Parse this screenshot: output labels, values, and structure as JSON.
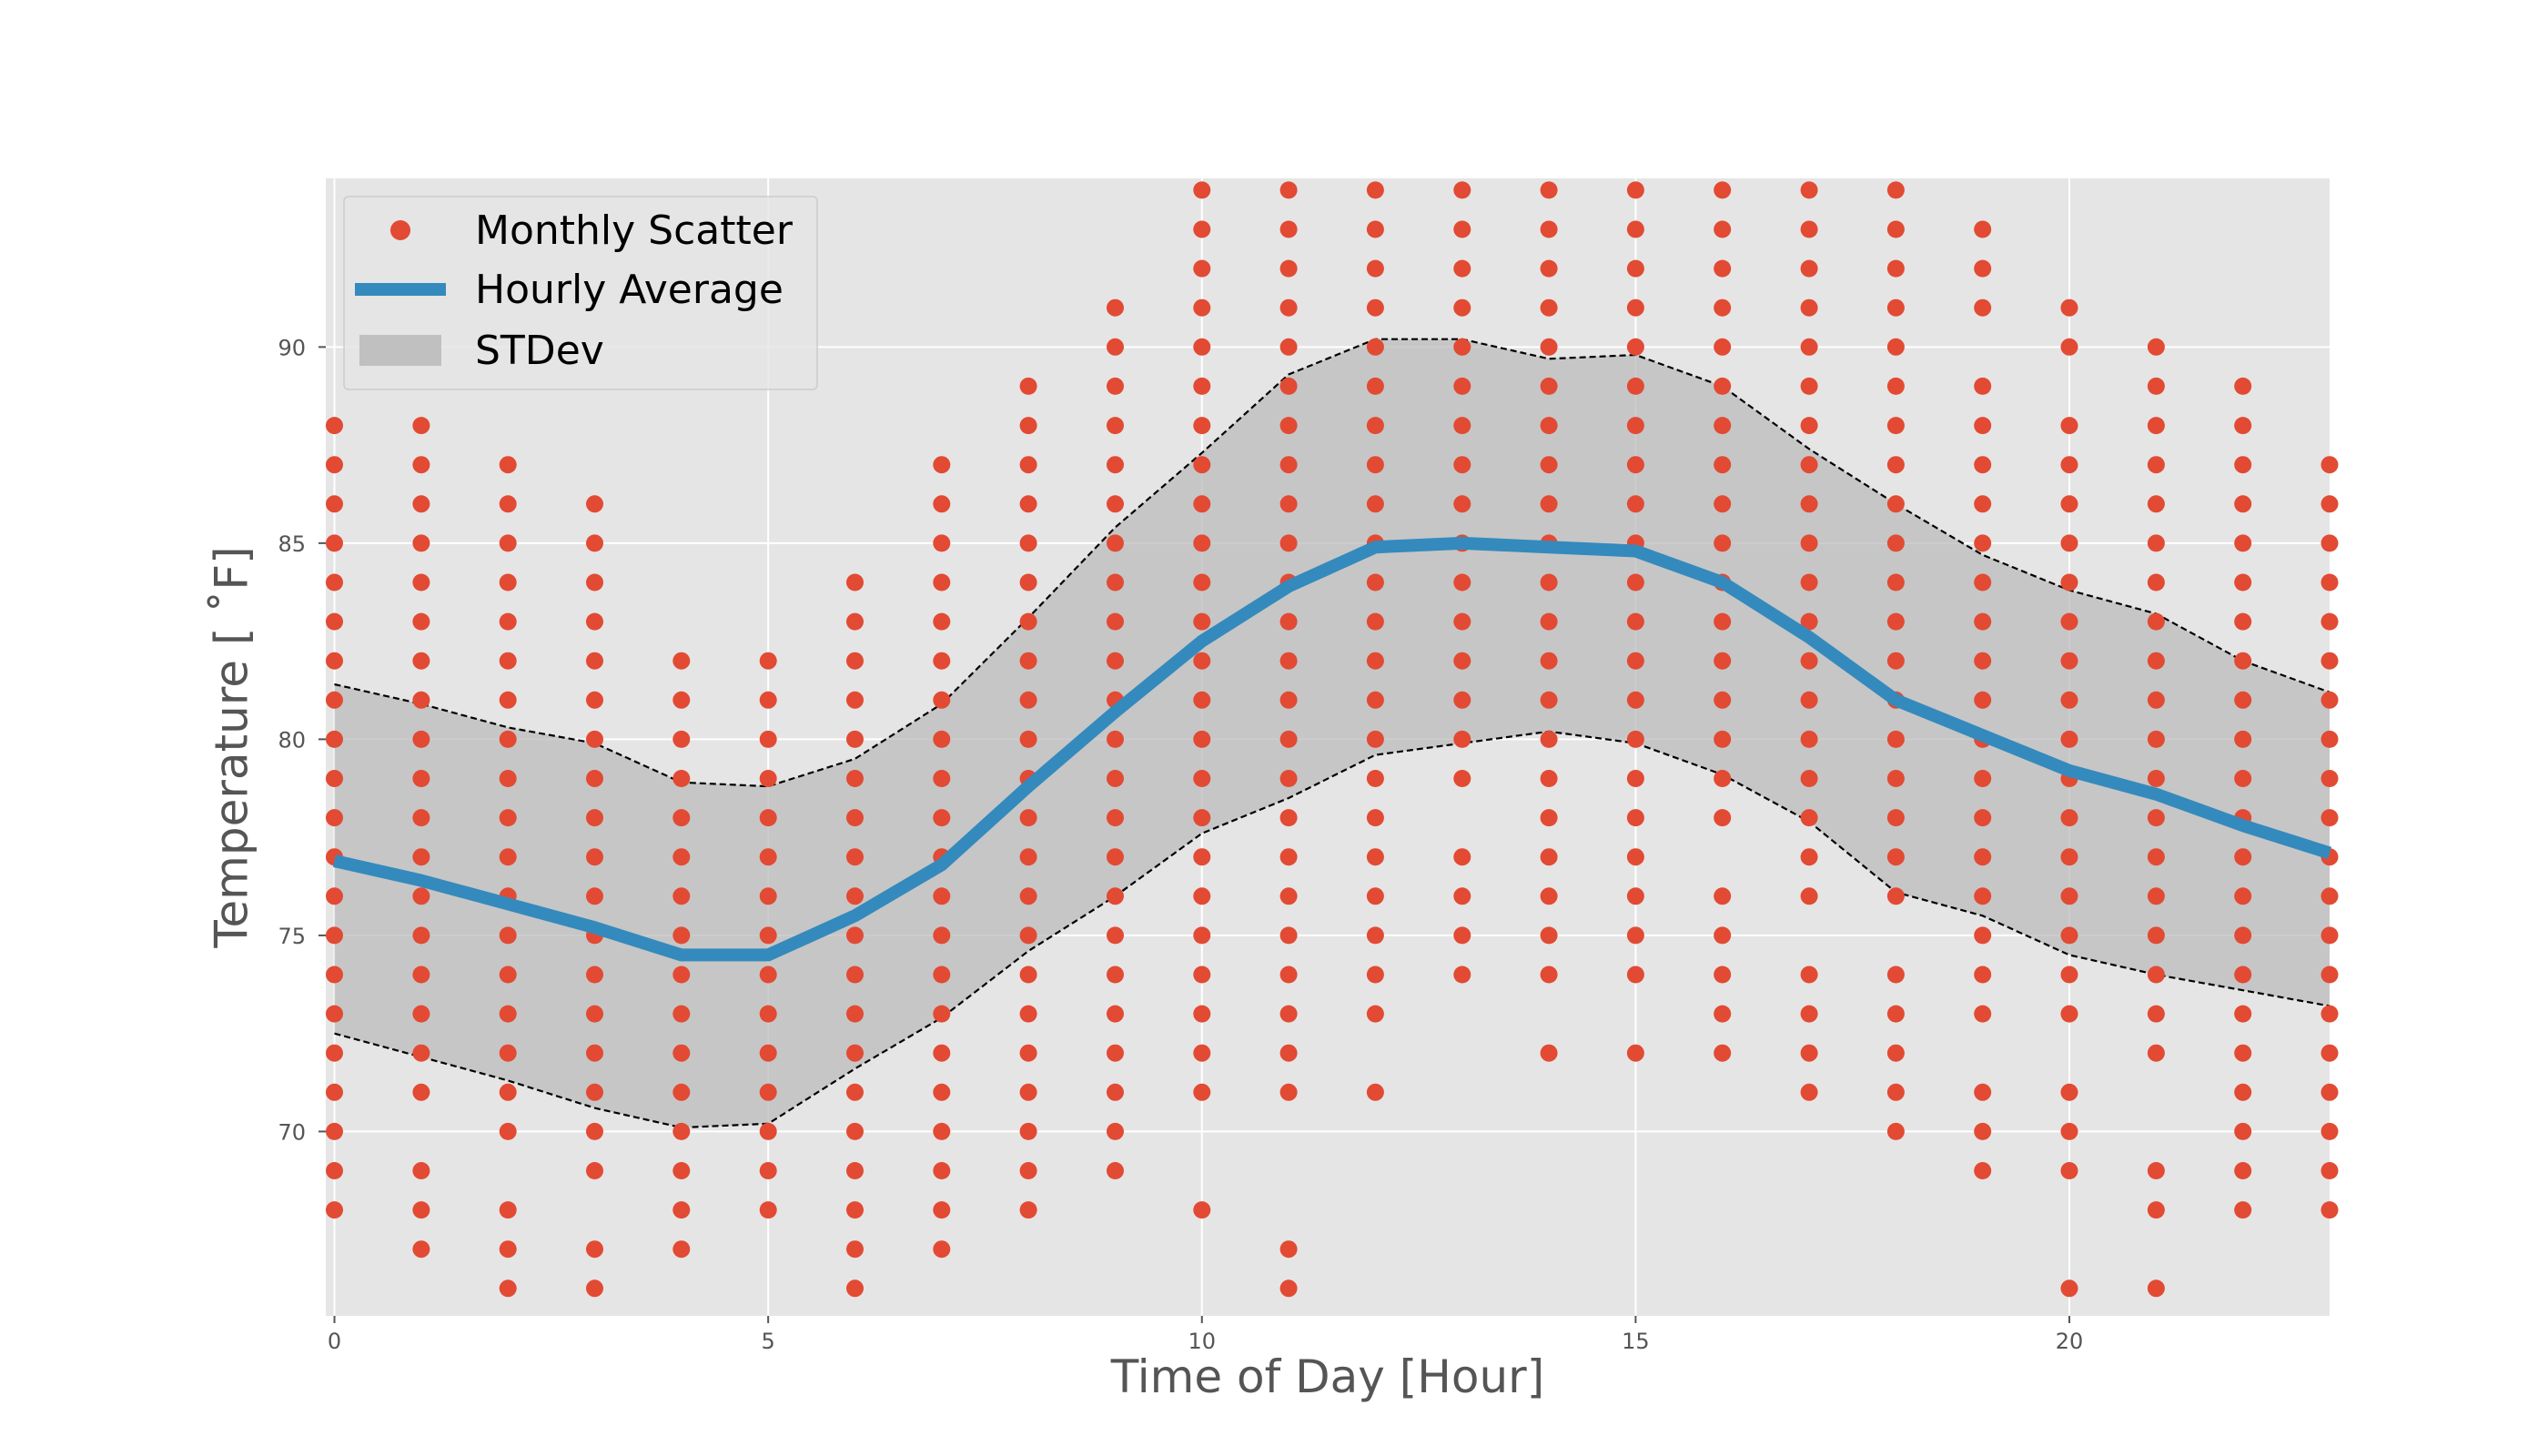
{
  "chart_data": {
    "type": "line",
    "xlabel": "Time of Day [Hour]",
    "ylabel": "Temperature [ ˚F]",
    "xlim": [
      -0.1,
      23.0
    ],
    "ylim": [
      65.3,
      94.3
    ],
    "x_ticks": [
      0,
      5,
      10,
      15,
      20
    ],
    "y_ticks": [
      70,
      75,
      80,
      85,
      90
    ],
    "grid": true,
    "legend": {
      "position": "top-left",
      "entries": [
        {
          "label": "Monthly Scatter",
          "kind": "marker",
          "color": "#e24a33"
        },
        {
          "label": "Hourly Average",
          "kind": "line",
          "color": "#348abd"
        },
        {
          "label": "STDev",
          "kind": "patch",
          "color": "#bbbbbb"
        }
      ]
    },
    "colors": {
      "scatter": "#e24a33",
      "average": "#348abd",
      "band": "#bbbbbb",
      "band_edge": "#000000",
      "plot_bg": "#e5e5e5",
      "grid": "#ffffff"
    },
    "scatter": {
      "name": "Monthly Scatter",
      "columns": [
        {
          "x": 0,
          "y": [
            68,
            69,
            70,
            71,
            72,
            73,
            74,
            75,
            76,
            77,
            78,
            79,
            80,
            81,
            82,
            83,
            84,
            85,
            86,
            87,
            88
          ]
        },
        {
          "x": 1,
          "y": [
            67,
            68,
            69,
            71,
            72,
            73,
            74,
            75,
            76,
            77,
            78,
            79,
            80,
            81,
            82,
            83,
            84,
            85,
            86,
            87,
            88
          ]
        },
        {
          "x": 2,
          "y": [
            66,
            67,
            68,
            70,
            71,
            72,
            73,
            74,
            75,
            76,
            77,
            78,
            79,
            80,
            81,
            82,
            83,
            84,
            85,
            86,
            87
          ]
        },
        {
          "x": 3,
          "y": [
            66,
            67,
            69,
            70,
            71,
            72,
            73,
            74,
            75,
            76,
            77,
            78,
            79,
            80,
            81,
            82,
            83,
            84,
            85,
            86
          ]
        },
        {
          "x": 4,
          "y": [
            67,
            68,
            69,
            70,
            71,
            72,
            73,
            74,
            75,
            76,
            77,
            78,
            79,
            80,
            81,
            82
          ]
        },
        {
          "x": 5,
          "y": [
            68,
            69,
            70,
            71,
            72,
            73,
            74,
            75,
            76,
            77,
            78,
            79,
            80,
            81,
            82
          ]
        },
        {
          "x": 6,
          "y": [
            66,
            67,
            68,
            69,
            70,
            71,
            72,
            73,
            74,
            75,
            76,
            77,
            78,
            79,
            80,
            81,
            82,
            83,
            84
          ]
        },
        {
          "x": 7,
          "y": [
            67,
            68,
            69,
            70,
            71,
            72,
            73,
            74,
            75,
            76,
            77,
            78,
            79,
            80,
            81,
            82,
            83,
            84,
            85,
            86,
            87
          ]
        },
        {
          "x": 8,
          "y": [
            68,
            69,
            70,
            71,
            72,
            73,
            74,
            75,
            76,
            77,
            78,
            79,
            80,
            81,
            82,
            83,
            84,
            85,
            86,
            87,
            88,
            89
          ]
        },
        {
          "x": 9,
          "y": [
            69,
            70,
            71,
            72,
            73,
            74,
            75,
            76,
            77,
            78,
            79,
            80,
            81,
            82,
            83,
            84,
            85,
            86,
            87,
            88,
            89,
            90,
            91
          ]
        },
        {
          "x": 10,
          "y": [
            68,
            71,
            72,
            73,
            74,
            75,
            76,
            77,
            78,
            79,
            80,
            81,
            82,
            83,
            84,
            85,
            86,
            87,
            88,
            89,
            90,
            91,
            92,
            93,
            94
          ]
        },
        {
          "x": 11,
          "y": [
            66,
            67,
            71,
            72,
            73,
            74,
            75,
            76,
            77,
            78,
            79,
            80,
            81,
            82,
            83,
            84,
            85,
            86,
            87,
            88,
            89,
            90,
            91,
            92,
            93,
            94
          ]
        },
        {
          "x": 12,
          "y": [
            71,
            73,
            74,
            75,
            76,
            77,
            78,
            79,
            80,
            81,
            82,
            83,
            84,
            85,
            86,
            87,
            88,
            89,
            90,
            91,
            92,
            93,
            94
          ]
        },
        {
          "x": 13,
          "y": [
            74,
            75,
            76,
            77,
            79,
            80,
            81,
            82,
            83,
            84,
            85,
            86,
            87,
            88,
            89,
            90,
            91,
            92,
            93,
            94
          ]
        },
        {
          "x": 14,
          "y": [
            72,
            74,
            75,
            76,
            77,
            78,
            79,
            80,
            81,
            82,
            83,
            84,
            85,
            86,
            87,
            88,
            89,
            90,
            91,
            92,
            93,
            94
          ]
        },
        {
          "x": 15,
          "y": [
            72,
            74,
            75,
            76,
            77,
            78,
            79,
            80,
            81,
            82,
            83,
            84,
            85,
            86,
            87,
            88,
            89,
            90,
            91,
            92,
            93,
            94
          ]
        },
        {
          "x": 16,
          "y": [
            72,
            73,
            74,
            75,
            76,
            78,
            79,
            80,
            81,
            82,
            83,
            84,
            85,
            86,
            87,
            88,
            89,
            90,
            91,
            92,
            93,
            94
          ]
        },
        {
          "x": 17,
          "y": [
            71,
            72,
            73,
            74,
            76,
            77,
            78,
            79,
            80,
            81,
            82,
            83,
            84,
            85,
            86,
            87,
            88,
            89,
            90,
            91,
            92,
            93,
            94
          ]
        },
        {
          "x": 18,
          "y": [
            70,
            71,
            72,
            73,
            74,
            76,
            77,
            78,
            79,
            80,
            81,
            82,
            83,
            84,
            85,
            86,
            87,
            88,
            89,
            90,
            91,
            92,
            93,
            94
          ]
        },
        {
          "x": 19,
          "y": [
            69,
            70,
            71,
            73,
            74,
            75,
            76,
            77,
            78,
            79,
            80,
            81,
            82,
            83,
            84,
            85,
            86,
            87,
            88,
            89,
            91,
            92,
            93
          ]
        },
        {
          "x": 20,
          "y": [
            66,
            69,
            70,
            71,
            73,
            74,
            75,
            76,
            77,
            78,
            79,
            80,
            81,
            82,
            83,
            84,
            85,
            86,
            87,
            88,
            90,
            91
          ]
        },
        {
          "x": 21,
          "y": [
            66,
            68,
            69,
            72,
            73,
            74,
            75,
            76,
            77,
            78,
            79,
            80,
            81,
            82,
            83,
            84,
            85,
            86,
            87,
            88,
            89,
            90
          ]
        },
        {
          "x": 22,
          "y": [
            68,
            69,
            70,
            71,
            72,
            73,
            74,
            75,
            76,
            77,
            78,
            79,
            80,
            81,
            82,
            83,
            84,
            85,
            86,
            87,
            88,
            89
          ]
        },
        {
          "x": 23,
          "y": [
            68,
            69,
            70,
            71,
            72,
            73,
            74,
            75,
            76,
            77,
            78,
            79,
            80,
            81,
            82,
            83,
            84,
            85,
            86,
            87
          ]
        }
      ]
    },
    "series": [
      {
        "name": "Hourly Average",
        "x": [
          0,
          1,
          2,
          3,
          4,
          5,
          6,
          7,
          8,
          9,
          10,
          11,
          12,
          13,
          14,
          15,
          16,
          17,
          18,
          19,
          20,
          21,
          22,
          23
        ],
        "values": [
          76.9,
          76.4,
          75.8,
          75.2,
          74.5,
          74.5,
          75.5,
          76.8,
          78.8,
          80.7,
          82.5,
          83.9,
          84.9,
          85.0,
          84.9,
          84.8,
          84.0,
          82.6,
          81.0,
          80.1,
          79.2,
          78.6,
          77.8,
          77.1
        ]
      },
      {
        "name": "STDev",
        "x": [
          0,
          1,
          2,
          3,
          4,
          5,
          6,
          7,
          8,
          9,
          10,
          11,
          12,
          13,
          14,
          15,
          16,
          17,
          18,
          19,
          20,
          21,
          22,
          23
        ],
        "upper": [
          81.4,
          80.9,
          80.3,
          79.9,
          78.9,
          78.8,
          79.5,
          80.9,
          83.1,
          85.4,
          87.3,
          89.3,
          90.2,
          90.2,
          89.7,
          89.8,
          89.0,
          87.4,
          86.0,
          84.7,
          83.8,
          83.2,
          82.0,
          81.2
        ],
        "lower": [
          72.5,
          71.9,
          71.3,
          70.6,
          70.1,
          70.2,
          71.6,
          72.9,
          74.6,
          76.0,
          77.6,
          78.5,
          79.6,
          79.9,
          80.2,
          79.9,
          79.1,
          77.9,
          76.1,
          75.5,
          74.5,
          74.0,
          73.6,
          73.2
        ]
      }
    ]
  }
}
